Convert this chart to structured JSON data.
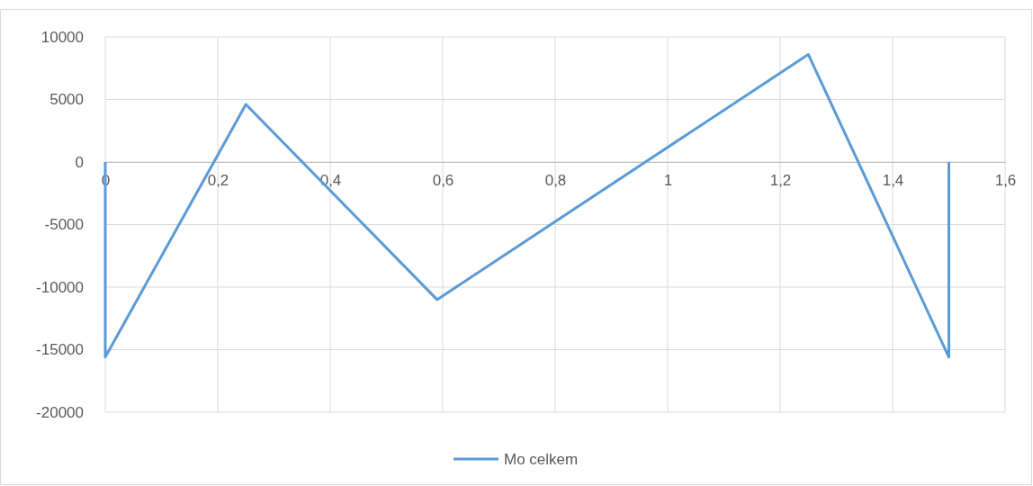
{
  "chart_data": {
    "type": "line",
    "x": [
      0,
      0,
      0.25,
      0.59,
      1.25,
      1.5,
      1.5
    ],
    "series": [
      {
        "name": "Mo celkem",
        "color": "#5b9bd5",
        "values": [
          0,
          -15600,
          4600,
          -11000,
          8600,
          -15600,
          0
        ]
      }
    ],
    "xlim": [
      0,
      1.6
    ],
    "xticks": [
      0,
      {
        "value": 0.2,
        "label": "0,2"
      },
      {
        "value": 0.4,
        "label": "0,4"
      },
      {
        "value": 0.6,
        "label": "0,6"
      },
      {
        "value": 0.8,
        "label": "0,8"
      },
      1,
      {
        "value": 1.2,
        "label": "1,2"
      },
      {
        "value": 1.4,
        "label": "1,4"
      },
      {
        "value": 1.6,
        "label": "1,6"
      }
    ],
    "ylim": [
      -20000,
      10000
    ],
    "yticks": [
      -20000,
      -15000,
      -10000,
      -5000,
      0,
      5000,
      10000
    ],
    "grid": true,
    "legend": "bottom",
    "marker": "none",
    "line_style": "solid"
  }
}
